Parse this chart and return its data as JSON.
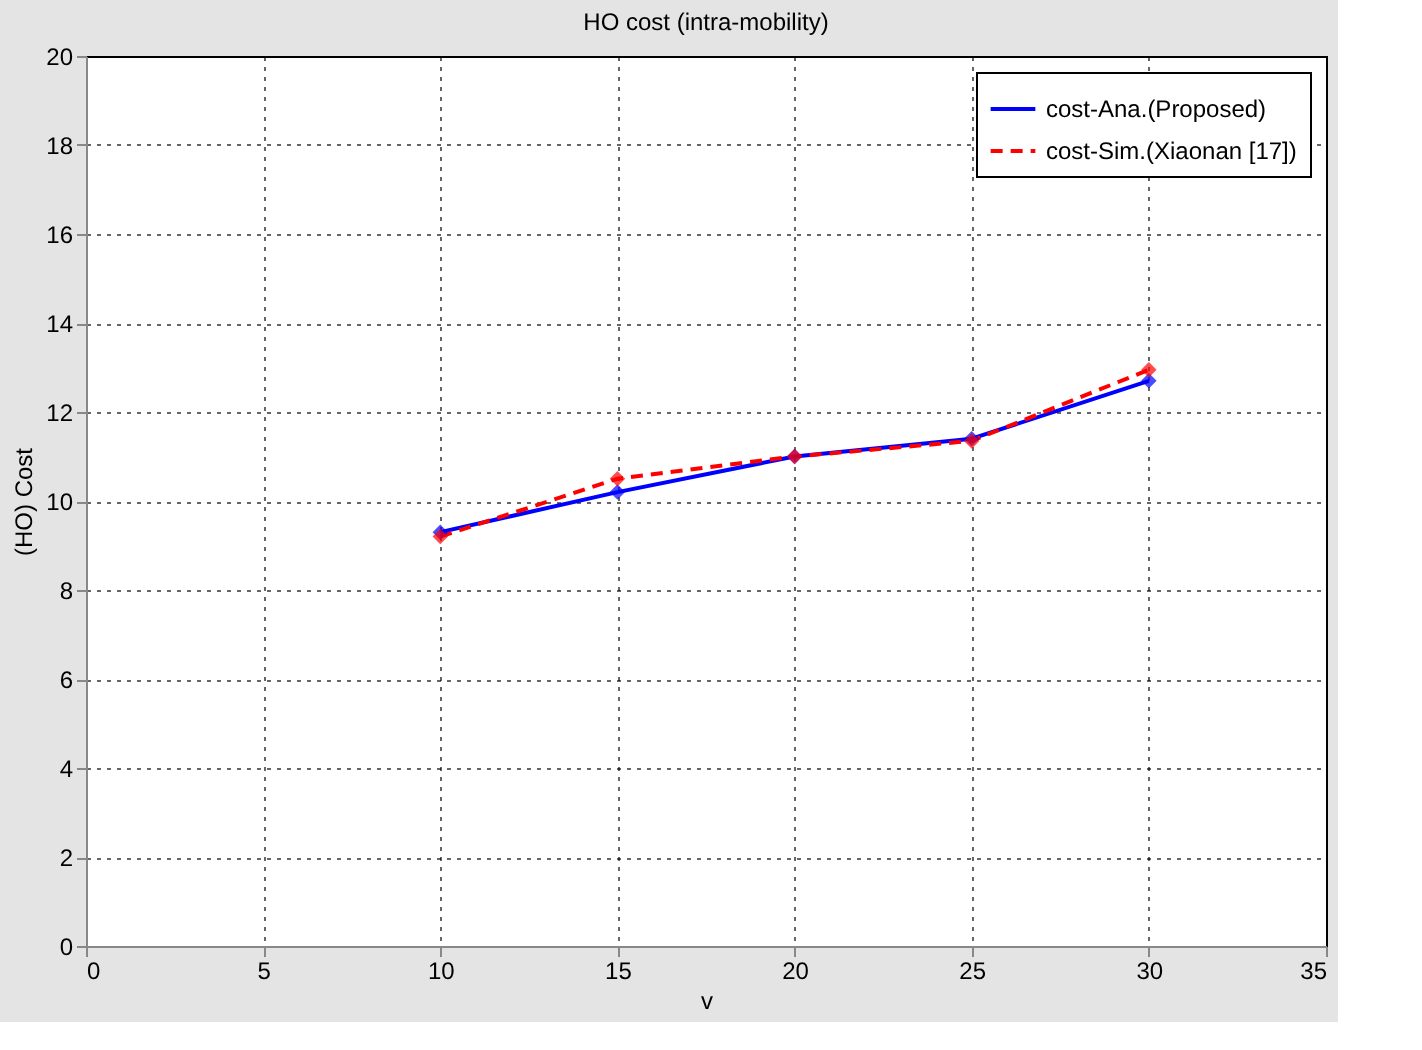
{
  "chart_data": {
    "type": "line",
    "title": "HO cost (intra-mobility)",
    "xlabel": "v",
    "ylabel": "(HO) Cost",
    "x": [
      10,
      15,
      20,
      25,
      30
    ],
    "series": [
      {
        "name": "cost-Ana.(Proposed)",
        "color": "#0000ff",
        "values": [
          9.3,
          10.2,
          11.0,
          11.4,
          12.7
        ],
        "line_style": "solid"
      },
      {
        "name": "cost-Sim.(Xiaonan [17])",
        "color": "#ff0000",
        "values": [
          9.2,
          10.5,
          11.0,
          11.35,
          12.95
        ],
        "line_style": "dashed"
      }
    ],
    "xlim": [
      0,
      35
    ],
    "xticks": [
      0,
      5,
      10,
      15,
      20,
      25,
      30,
      35
    ],
    "ylim": [
      0,
      20
    ],
    "yticks": [
      0,
      2,
      4,
      6,
      8,
      10,
      12,
      14,
      16,
      18,
      20
    ],
    "grid": true,
    "legend": "top right",
    "marker": "diamond"
  }
}
